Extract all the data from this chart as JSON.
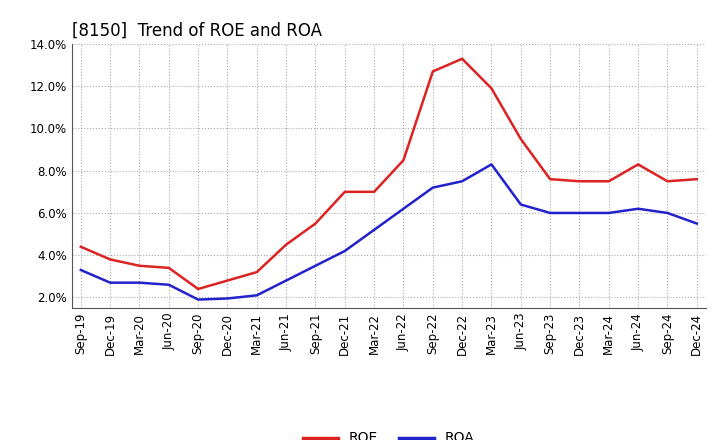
{
  "title": "[8150]  Trend of ROE and ROA",
  "x_labels": [
    "Sep-19",
    "Dec-19",
    "Mar-20",
    "Jun-20",
    "Sep-20",
    "Dec-20",
    "Mar-21",
    "Jun-21",
    "Sep-21",
    "Dec-21",
    "Mar-22",
    "Jun-22",
    "Sep-22",
    "Dec-22",
    "Mar-23",
    "Jun-23",
    "Sep-23",
    "Dec-23",
    "Mar-24",
    "Jun-24",
    "Sep-24",
    "Dec-24"
  ],
  "roe_values": [
    4.4,
    3.8,
    3.5,
    3.4,
    2.4,
    2.8,
    3.2,
    4.5,
    5.5,
    7.0,
    7.0,
    8.5,
    12.7,
    13.3,
    11.9,
    9.5,
    7.6,
    7.5,
    7.5,
    8.3,
    7.5,
    7.6
  ],
  "roa_values": [
    3.3,
    2.7,
    2.7,
    2.6,
    1.9,
    1.95,
    2.1,
    2.8,
    3.5,
    4.2,
    5.2,
    6.2,
    7.2,
    7.5,
    8.3,
    6.4,
    6.0,
    6.0,
    6.0,
    6.2,
    6.0,
    5.5
  ],
  "roe_color": "#dd2222",
  "roa_color": "#2222cc",
  "ylim": [
    1.5,
    14.0
  ],
  "yticks": [
    2.0,
    4.0,
    6.0,
    8.0,
    10.0,
    12.0,
    14.0
  ],
  "background_color": "#ffffff",
  "grid_color": "#aaaaaa",
  "title_fontsize": 12,
  "legend_fontsize": 10,
  "axis_fontsize": 8.5,
  "line_width": 1.8
}
